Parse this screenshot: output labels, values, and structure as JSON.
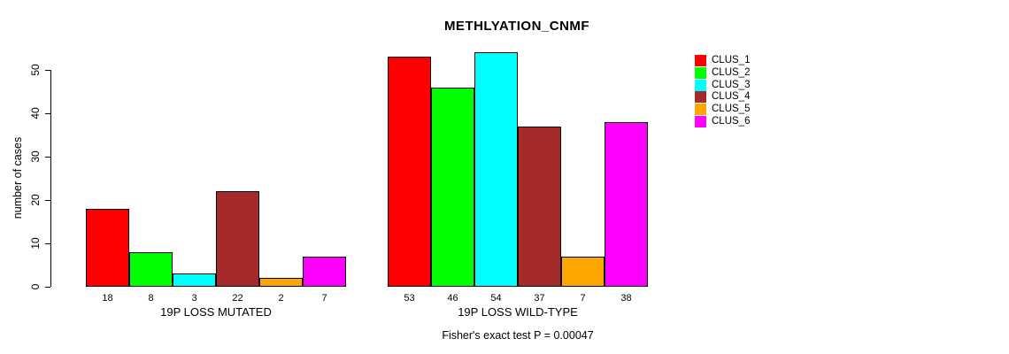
{
  "title": "METHLYATION_CNMF",
  "ylabel": "number of cases",
  "footer": "Fisher's exact test P = 0.00047",
  "chart_data": {
    "type": "bar",
    "title": "METHLYATION_CNMF",
    "xlabel": "",
    "ylabel": "number of cases",
    "ylim": [
      0,
      50
    ],
    "yticks": [
      0,
      10,
      20,
      30,
      40,
      50
    ],
    "grid": false,
    "legend_position": "right",
    "series": [
      {
        "name": "CLUS_1",
        "color": "#ff0000"
      },
      {
        "name": "CLUS_2",
        "color": "#00ff00"
      },
      {
        "name": "CLUS_3",
        "color": "#00ffff"
      },
      {
        "name": "CLUS_4",
        "color": "#a52a2a"
      },
      {
        "name": "CLUS_5",
        "color": "#ffa500"
      },
      {
        "name": "CLUS_6",
        "color": "#ff00ff"
      }
    ],
    "groups": [
      {
        "label": "19P LOSS MUTATED",
        "values": [
          18,
          8,
          3,
          22,
          2,
          7
        ]
      },
      {
        "label": "19P LOSS WILD-TYPE",
        "values": [
          53,
          46,
          54,
          37,
          7,
          38
        ]
      }
    ],
    "bar_value_labels_shown": true,
    "annotation": "Fisher's exact test P = 0.00047"
  }
}
